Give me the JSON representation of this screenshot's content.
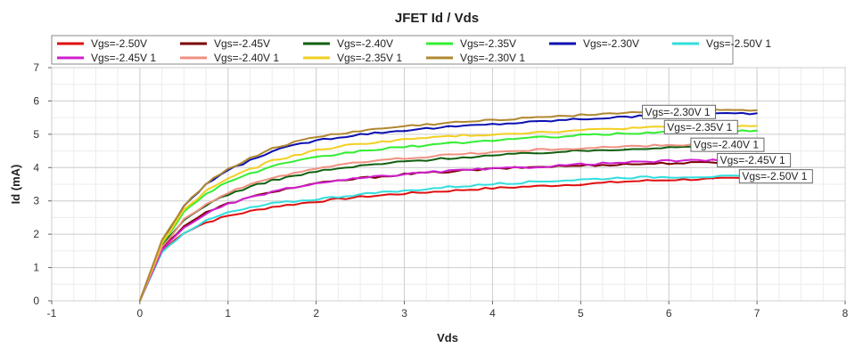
{
  "chart_data": {
    "type": "line",
    "title": "JFET Id / Vds",
    "xlabel": "Vds",
    "ylabel": "Id (mA)",
    "xlim": [
      -1,
      8
    ],
    "ylim": [
      0,
      7
    ],
    "xticks": [
      -1,
      0,
      1,
      2,
      3,
      4,
      5,
      6,
      7,
      8
    ],
    "yticks": [
      0,
      1,
      2,
      3,
      4,
      5,
      6,
      7
    ],
    "x_minor_step": 0.25,
    "y_minor_step": 0.5,
    "grid": true,
    "legend_position": "top-left",
    "x": [
      0,
      0.25,
      0.5,
      0.75,
      1,
      1.5,
      2,
      2.5,
      3,
      3.5,
      4,
      4.5,
      5,
      5.5,
      6,
      6.5,
      7
    ],
    "series": [
      {
        "name": "Vgs=-2.50V",
        "color": "#e01010",
        "values": [
          0,
          1.5,
          2.05,
          2.35,
          2.55,
          2.82,
          2.98,
          3.12,
          3.22,
          3.3,
          3.38,
          3.44,
          3.5,
          3.58,
          3.63,
          3.66,
          3.68
        ]
      },
      {
        "name": "Vgs=-2.45V",
        "color": "#7a0000",
        "values": [
          0,
          1.58,
          2.25,
          2.65,
          2.92,
          3.28,
          3.52,
          3.68,
          3.8,
          3.88,
          3.96,
          4.02,
          4.06,
          4.1,
          4.13,
          4.15,
          4.16
        ]
      },
      {
        "name": "Vgs=-2.40V",
        "color": "#106010",
        "values": [
          0,
          1.64,
          2.42,
          2.88,
          3.2,
          3.62,
          3.88,
          4.05,
          4.18,
          4.28,
          4.36,
          4.44,
          4.5,
          4.56,
          4.6,
          4.63,
          4.64
        ]
      },
      {
        "name": "Vgs=-2.35V",
        "color": "#33ee33",
        "values": [
          0,
          1.72,
          2.66,
          3.22,
          3.58,
          4.04,
          4.3,
          4.5,
          4.62,
          4.72,
          4.82,
          4.9,
          4.97,
          5.02,
          5.07,
          5.1,
          5.11
        ]
      },
      {
        "name": "Vgs=-2.30V",
        "color": "#0c10b0",
        "values": [
          0,
          1.8,
          2.82,
          3.5,
          3.92,
          4.5,
          4.82,
          5.0,
          5.12,
          5.22,
          5.3,
          5.38,
          5.46,
          5.52,
          5.58,
          5.62,
          5.63
        ]
      },
      {
        "name": "Vgs=-2.50V 1",
        "color": "#33dddd",
        "values": [
          0,
          1.45,
          2.05,
          2.4,
          2.65,
          2.92,
          3.05,
          3.2,
          3.3,
          3.42,
          3.5,
          3.58,
          3.64,
          3.7,
          3.72,
          3.73,
          3.74
        ]
      },
      {
        "name": "Vgs=-2.45V 1",
        "color": "#d020d0",
        "values": [
          0,
          1.52,
          2.2,
          2.62,
          2.9,
          3.28,
          3.52,
          3.68,
          3.8,
          3.9,
          3.96,
          4.02,
          4.1,
          4.15,
          4.2,
          4.22,
          4.23
        ]
      },
      {
        "name": "Vgs=-2.40V 1",
        "color": "#f09080",
        "values": [
          0,
          1.62,
          2.45,
          2.9,
          3.25,
          3.7,
          3.98,
          4.16,
          4.28,
          4.38,
          4.46,
          4.53,
          4.58,
          4.63,
          4.67,
          4.7,
          4.71
        ]
      },
      {
        "name": "Vgs=-2.35V 1",
        "color": "#f2d020",
        "values": [
          0,
          1.74,
          2.72,
          3.3,
          3.68,
          4.2,
          4.52,
          4.72,
          4.84,
          4.94,
          5.0,
          5.06,
          5.12,
          5.18,
          5.22,
          5.24,
          5.25
        ]
      },
      {
        "name": "Vgs=-2.30V 1",
        "color": "#b08830",
        "values": [
          0,
          1.82,
          2.86,
          3.52,
          3.96,
          4.58,
          4.92,
          5.1,
          5.24,
          5.34,
          5.42,
          5.52,
          5.58,
          5.65,
          5.7,
          5.72,
          5.72
        ]
      }
    ],
    "annotations": [
      {
        "text": "Vgs=-2.30V 1",
        "series": "Vgs=-2.30V 1"
      },
      {
        "text": "Vgs=-2.35V 1",
        "series": "Vgs=-2.35V 1"
      },
      {
        "text": "Vgs=-2.40V 1",
        "series": "Vgs=-2.40V 1"
      },
      {
        "text": "Vgs=-2.45V 1",
        "series": "Vgs=-2.45V 1"
      },
      {
        "text": "Vgs=-2.50V 1",
        "series": "Vgs=-2.50V 1"
      }
    ]
  }
}
